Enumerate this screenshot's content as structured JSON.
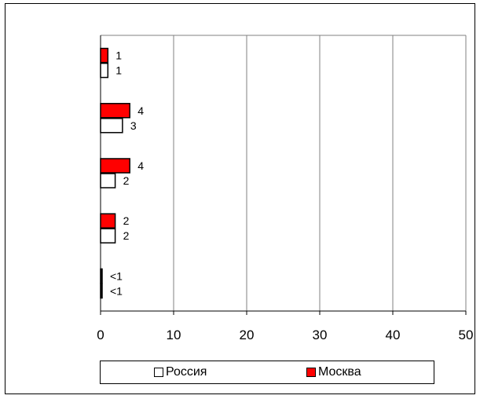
{
  "chart_data": {
    "type": "bar",
    "orientation": "horizontal",
    "categories": [
      "",
      "",
      "",
      "",
      ""
    ],
    "series": [
      {
        "name": "Москва",
        "color": "#ff0000",
        "values": [
          1,
          4,
          4,
          2,
          0.3
        ],
        "labels": [
          "1",
          "4",
          "4",
          "2",
          "<1"
        ]
      },
      {
        "name": "Россия",
        "color": "#ffffff",
        "values": [
          1,
          3,
          2,
          2,
          0.3
        ],
        "labels": [
          "1",
          "3",
          "2",
          "2",
          "<1"
        ]
      }
    ],
    "xlim": [
      0,
      50
    ],
    "xticks": [
      "0",
      "10",
      "20",
      "30",
      "40",
      "50"
    ],
    "grid": true,
    "legend_position": "bottom",
    "title": "",
    "xlabel": "",
    "ylabel": ""
  },
  "legend": [
    {
      "name": "Россия",
      "color": "#ffffff"
    },
    {
      "name": "Москва",
      "color": "#ff0000"
    }
  ]
}
